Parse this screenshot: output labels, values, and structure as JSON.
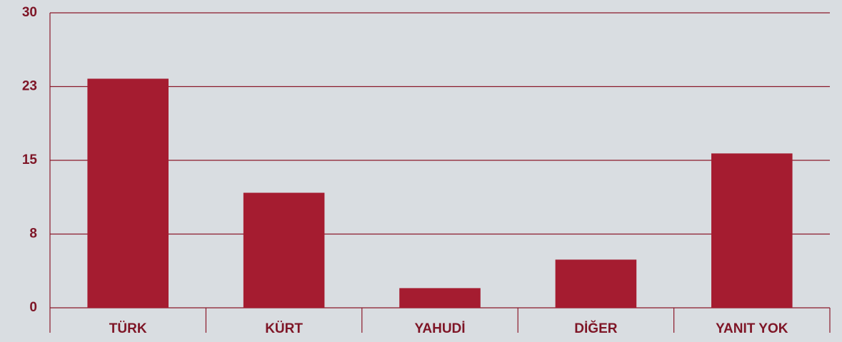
{
  "chart_data": {
    "type": "bar",
    "categories": [
      "TÜRK",
      "KÜRT",
      "YAHUDİ",
      "DİĞER",
      "YANIT YOK"
    ],
    "values": [
      23.3,
      11.7,
      2,
      4.9,
      15.7
    ],
    "color": "#a51c30",
    "ylim": [
      0,
      30
    ],
    "yticks": [
      0,
      {
        "value": 7.5,
        "label": "8"
      },
      15,
      {
        "value": 22.5,
        "label": "23"
      },
      30
    ],
    "grid": true
  }
}
